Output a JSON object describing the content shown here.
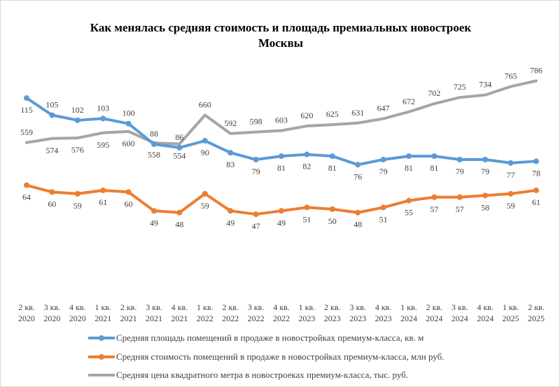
{
  "chart_data": {
    "type": "line",
    "title": "Как менялась средняя стоимость  и площадь премиальных новостроек Москвы",
    "title_lines": [
      "Как менялась средняя стоимость  и площадь премиальных новостроек",
      "Москвы"
    ],
    "categories": [
      "2 кв. 2020",
      "3 кв. 2020",
      "4 кв. 2020",
      "1 кв. 2021",
      "2 кв. 2021",
      "3 кв. 2021",
      "4 кв. 2021",
      "1 кв. 2022",
      "2 кв. 2022",
      "3 кв. 2022",
      "4 кв. 2022",
      "1 кв. 2023",
      "2 кв. 2023",
      "3 кв. 2023",
      "4 кв. 2023",
      "1 кв. 2024",
      "2 кв. 2024",
      "3 кв. 2024",
      "4 кв. 2024",
      "1 кв. 2025",
      "2 кв. 2025"
    ],
    "series": [
      {
        "name": "Средняя площадь помещений в продаже в новостройках премиум-класса, кв. м",
        "color": "#5b9bd5",
        "axis": "primary",
        "markers": true,
        "values": [
          115,
          105,
          102,
          103,
          100,
          88,
          86,
          90,
          83,
          79,
          81,
          82,
          81,
          76,
          79,
          81,
          81,
          79,
          79,
          77,
          78
        ]
      },
      {
        "name": "Средняя стоимость помещений в продаже в новостройках премиум-класса, млн руб.",
        "color": "#ed7d31",
        "axis": "primary",
        "markers": true,
        "values": [
          64,
          60,
          59,
          61,
          60,
          49,
          48,
          59,
          49,
          47,
          49,
          51,
          50,
          48,
          51,
          55,
          57,
          57,
          58,
          59,
          61
        ]
      },
      {
        "name": "Средняя цена квадратного метра в новостроеках премиум-класса, тыс. руб.",
        "color": "#a5a5a5",
        "axis": "secondary",
        "markers": false,
        "values": [
          559,
          574,
          576,
          595,
          600,
          558,
          554,
          660,
          592,
          598,
          603,
          620,
          625,
          631,
          647,
          672,
          702,
          725,
          734,
          765,
          786
        ]
      }
    ],
    "ylim": [
      0,
      140
    ],
    "y2lim": [
      0,
      880
    ],
    "axes_visible": false,
    "grid": false,
    "data_labels": true,
    "legend_position": "bottom"
  }
}
